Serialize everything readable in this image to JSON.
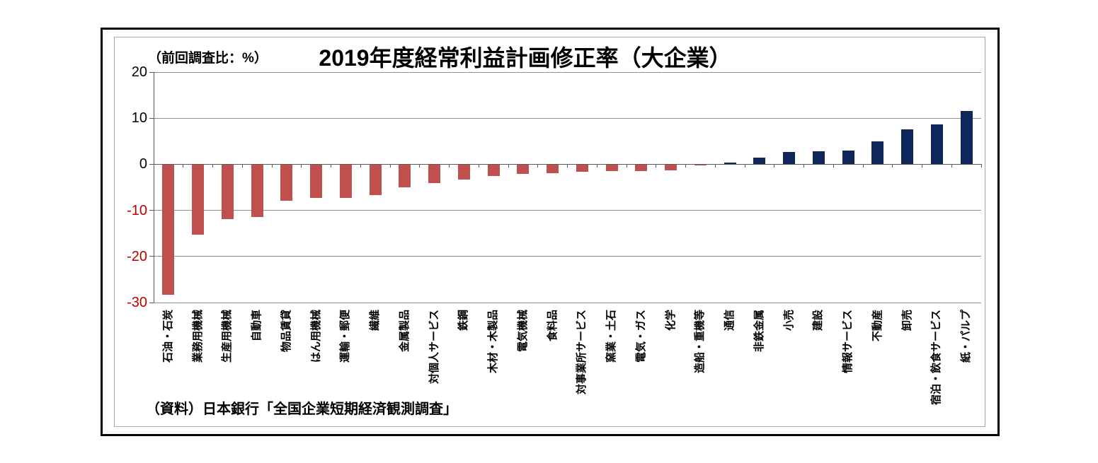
{
  "page": {
    "title": "2019年度経常利益計画修正率（大企業）",
    "unit_label": "（前回調査比：%）",
    "source": "（資料）日本銀行「全国企業短期経済観測調査」"
  },
  "colors": {
    "positive_bar": "#0e2659",
    "negative_bar": "#c0504d",
    "negative_tick_label": "#c00000",
    "positive_tick_label": "#000000",
    "gridline": "#8f8f8f",
    "axis": "#595959"
  },
  "chart_data": {
    "type": "bar",
    "title": "2019年度経常利益計画修正率（大企業）",
    "ylabel": "前回調査比：%",
    "xlabel": "",
    "ylim": [
      -30,
      20
    ],
    "ytick_step": 10,
    "yticks": [
      20,
      10,
      0,
      -10,
      -20,
      -30
    ],
    "grid": true,
    "legend": "none",
    "categories": [
      "石油・石炭",
      "業務用機械",
      "生産用機械",
      "自動車",
      "物品賃貸",
      "はん用機械",
      "運輸・郵便",
      "繊維",
      "金属製品",
      "対個人サービス",
      "鉄鋼",
      "木材・木製品",
      "電気機械",
      "食料品",
      "対事業所サービス",
      "窯業・土石",
      "電気・ガス",
      "化学",
      "造船・重機等",
      "通信",
      "非鉄金属",
      "小売",
      "建設",
      "情報サービス",
      "不動産",
      "卸売",
      "宿泊・飲食サービス",
      "紙・パルプ"
    ],
    "values": [
      -28.2,
      -15.2,
      -11.8,
      -11.3,
      -7.7,
      -7.2,
      -7.1,
      -6.5,
      -4.9,
      -3.9,
      -3.1,
      -2.4,
      -2.0,
      -1.8,
      -1.5,
      -1.3,
      -1.3,
      -1.2,
      -0.1,
      0.4,
      1.5,
      2.6,
      2.8,
      2.9,
      4.9,
      7.6,
      8.6,
      11.5
    ],
    "bar_color_rule": "negative values red (#c0504d), positive values navy (#0e2659)",
    "source": "（資料）日本銀行「全国企業短期経済観測調査」"
  }
}
